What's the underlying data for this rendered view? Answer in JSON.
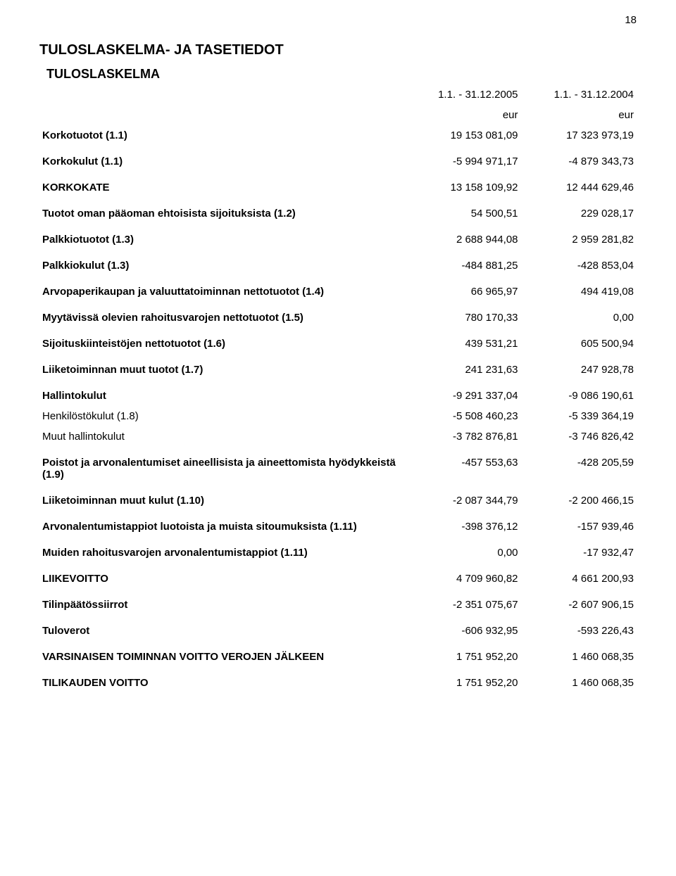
{
  "page_number": "18",
  "title": "TULOSLASKELMA- JA TASETIEDOT",
  "subtitle": "TULOSLASKELMA",
  "header": {
    "col1": "1.1. - 31.12.2005",
    "col2": "1.1. - 31.12.2004",
    "unit1": "eur",
    "unit2": "eur"
  },
  "rows": [
    {
      "label": "Korkotuotot (1.1)",
      "v1": "19 153 081,09",
      "v2": "17 323 973,19",
      "bold": true
    },
    {
      "label": "Korkokulut (1.1)",
      "v1": "-5 994 971,17",
      "v2": "-4 879 343,73",
      "bold": true
    },
    {
      "label": "KORKOKATE",
      "v1": "13 158 109,92",
      "v2": "12 444 629,46",
      "bold": true
    },
    {
      "label": "Tuotot oman pääoman ehtoisista sijoituksista (1.2)",
      "v1": "54 500,51",
      "v2": "229 028,17",
      "bold": true
    },
    {
      "label": "Palkkiotuotot (1.3)",
      "v1": "2 688 944,08",
      "v2": "2 959 281,82",
      "bold": true
    },
    {
      "label": "Palkkiokulut (1.3)",
      "v1": "-484 881,25",
      "v2": "-428 853,04",
      "bold": true
    },
    {
      "label": "Arvopaperikaupan ja valuuttatoiminnan nettotuotot (1.4)",
      "v1": "66 965,97",
      "v2": "494 419,08",
      "bold": true
    },
    {
      "label": "Myytävissä olevien rahoitusvarojen nettotuotot (1.5)",
      "v1": "780 170,33",
      "v2": "0,00",
      "bold": true
    },
    {
      "label": "Sijoituskiinteistöjen nettotuotot (1.6)",
      "v1": "439 531,21",
      "v2": "605 500,94",
      "bold": true
    },
    {
      "label": "Liiketoiminnan muut tuotot (1.7)",
      "v1": "241 231,63",
      "v2": "247 928,78",
      "bold": true
    },
    {
      "label": "Hallintokulut",
      "v1": "-9 291 337,04",
      "v2": "-9 086 190,61",
      "bold": true
    },
    {
      "label": "Henkilöstökulut (1.8)",
      "v1": "-5 508 460,23",
      "v2": "-5 339 364,19",
      "bold": false,
      "indent": true
    },
    {
      "label": "Muut hallintokulut",
      "v1": "-3 782 876,81",
      "v2": "-3 746 826,42",
      "bold": false,
      "indent": true
    },
    {
      "label": "Poistot ja arvonalentumiset aineellisista ja aineettomista hyödykkeistä (1.9)",
      "v1": "-457 553,63",
      "v2": "-428 205,59",
      "bold": true
    },
    {
      "label": "Liiketoiminnan muut kulut (1.10)",
      "v1": "-2 087 344,79",
      "v2": "-2 200 466,15",
      "bold": true
    },
    {
      "label": "Arvonalentumistappiot luotoista ja muista sitoumuksista (1.11)",
      "v1": "-398 376,12",
      "v2": "-157 939,46",
      "bold": true
    },
    {
      "label": "Muiden rahoitusvarojen arvonalentumistappiot (1.11)",
      "v1": "0,00",
      "v2": "-17 932,47",
      "bold": true
    },
    {
      "label": "LIIKEVOITTO",
      "v1": "4 709 960,82",
      "v2": "4 661 200,93",
      "bold": true
    },
    {
      "label": "Tilinpäätössiirrot",
      "v1": "-2 351 075,67",
      "v2": "-2 607 906,15",
      "bold": true
    },
    {
      "label": "Tuloverot",
      "v1": "-606 932,95",
      "v2": "-593 226,43",
      "bold": true
    },
    {
      "label": "VARSINAISEN TOIMINNAN VOITTO VEROJEN JÄLKEEN",
      "v1": "1 751 952,20",
      "v2": "1 460 068,35",
      "bold": true
    },
    {
      "label": "TILIKAUDEN VOITTO",
      "v1": "1 751 952,20",
      "v2": "1 460 068,35",
      "bold": true
    }
  ],
  "style": {
    "background_color": "#ffffff",
    "text_color": "#000000",
    "font_family": "Arial",
    "title_fontsize": 20,
    "row_fontsize": 15
  }
}
